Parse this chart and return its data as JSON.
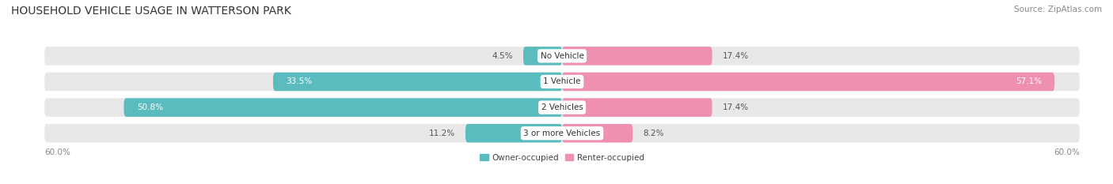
{
  "title": "HOUSEHOLD VEHICLE USAGE IN WATTERSON PARK",
  "source": "Source: ZipAtlas.com",
  "categories": [
    "No Vehicle",
    "1 Vehicle",
    "2 Vehicles",
    "3 or more Vehicles"
  ],
  "owner_values": [
    4.5,
    33.5,
    50.8,
    11.2
  ],
  "renter_values": [
    17.4,
    57.1,
    17.4,
    8.2
  ],
  "owner_color": "#5bbcbf",
  "renter_color": "#f090b0",
  "axis_max": 60.0,
  "axis_label_left": "60.0%",
  "axis_label_right": "60.0%",
  "legend_owner": "Owner-occupied",
  "legend_renter": "Renter-occupied",
  "background_color": "#ffffff",
  "bar_background": "#e8e8e8",
  "row_sep_color": "#d0d0d0",
  "title_fontsize": 10,
  "source_fontsize": 7.5,
  "label_fontsize": 7.5,
  "category_fontsize": 7.5
}
